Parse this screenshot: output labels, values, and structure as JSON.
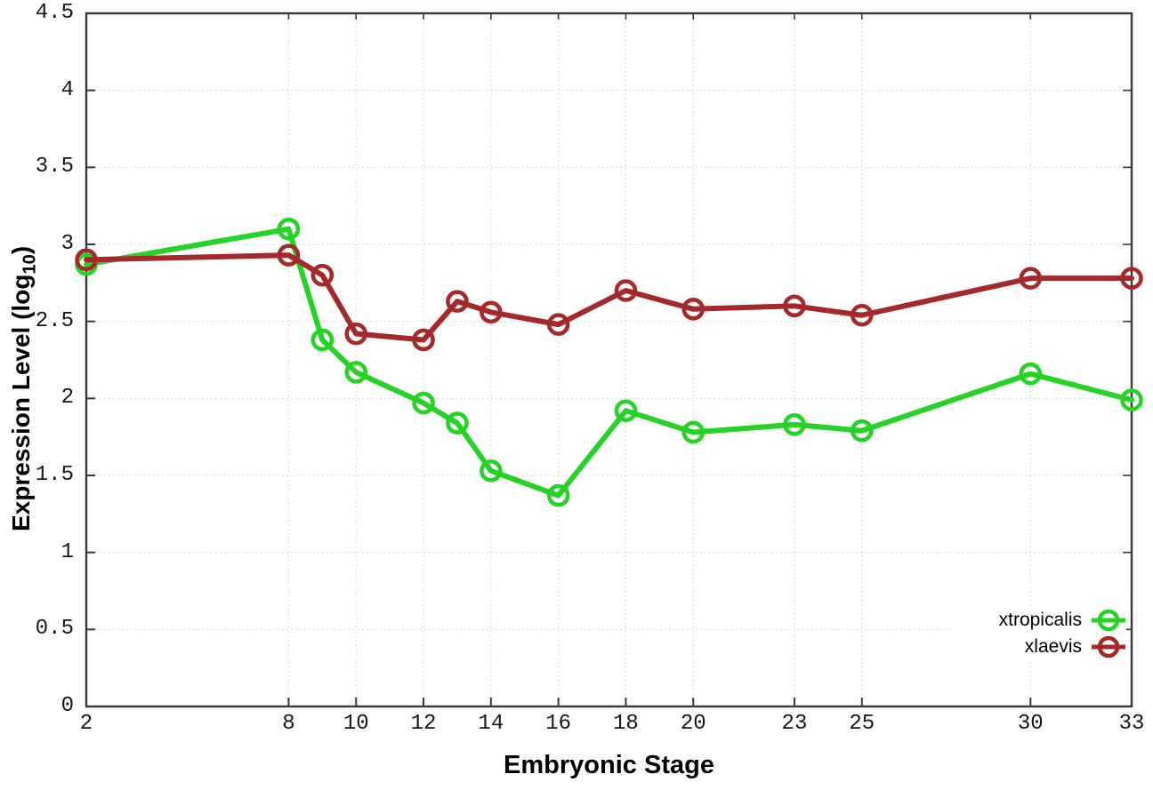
{
  "chart_data": {
    "type": "line",
    "x": [
      2,
      8,
      9,
      10,
      12,
      13,
      14,
      16,
      18,
      20,
      23,
      25,
      30,
      33
    ],
    "series": [
      {
        "name": "xtropicalis",
        "color": "#24d324",
        "values": [
          2.87,
          3.1,
          2.38,
          2.17,
          1.97,
          1.84,
          1.53,
          1.37,
          1.92,
          1.78,
          1.83,
          1.79,
          2.16,
          1.99
        ]
      },
      {
        "name": "xlaevis",
        "color": "#a62929",
        "values": [
          2.9,
          2.93,
          2.8,
          2.42,
          2.38,
          2.63,
          2.56,
          2.48,
          2.7,
          2.58,
          2.6,
          2.54,
          2.78,
          2.78
        ]
      }
    ],
    "xlabel": "Embryonic Stage",
    "ylabel": {
      "prefix": "Expression Level (log",
      "sub": "10",
      "suffix": ")"
    },
    "x_ticks": [
      "2",
      "8",
      "10",
      "12",
      "14",
      "16",
      "18",
      "20",
      "23",
      "25",
      "30",
      "33"
    ],
    "y_ticks": [
      "0",
      "0.5",
      "1",
      "1.5",
      "2",
      "2.5",
      "3",
      "3.5",
      "4",
      "4.5"
    ],
    "xlim": [
      2,
      33
    ],
    "ylim": [
      0,
      4.5
    ],
    "grid": true,
    "legend_position": "bottom-right",
    "marker": "open-circle"
  }
}
